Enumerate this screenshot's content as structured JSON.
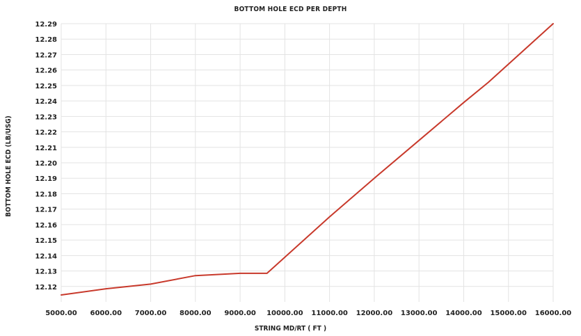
{
  "chart_data": {
    "type": "line",
    "title": "Bottom Hole ECD per Depth",
    "xlabel": "String MD/RT ( ft )",
    "ylabel": "Bottom Hole ECD (lb/usg)",
    "xlim": [
      5000,
      16000
    ],
    "ylim": [
      12.11,
      12.29
    ],
    "x_ticks": [
      "5000.00",
      "6000.00",
      "7000.00",
      "8000.00",
      "9000.00",
      "10000.00",
      "11000.00",
      "12000.00",
      "13000.00",
      "14000.00",
      "15000.00",
      "16000.00"
    ],
    "x_tick_values": [
      5000,
      6000,
      7000,
      8000,
      9000,
      10000,
      11000,
      12000,
      13000,
      14000,
      15000,
      16000
    ],
    "y_ticks": [
      "12.12",
      "12.13",
      "12.14",
      "12.15",
      "12.16",
      "12.17",
      "12.18",
      "12.19",
      "12.20",
      "12.21",
      "12.22",
      "12.23",
      "12.24",
      "12.25",
      "12.26",
      "12.27",
      "12.28",
      "12.29"
    ],
    "y_tick_values": [
      12.12,
      12.13,
      12.14,
      12.15,
      12.16,
      12.17,
      12.18,
      12.19,
      12.2,
      12.21,
      12.22,
      12.23,
      12.24,
      12.25,
      12.26,
      12.27,
      12.28,
      12.29
    ],
    "grid": true,
    "series": [
      {
        "color": "#c8392b",
        "x": [
          5000,
          6000,
          7000,
          8000,
          9000,
          9600,
          11000,
          12000,
          13000,
          14000,
          14550,
          16000
        ],
        "y": [
          12.1145,
          12.1185,
          12.1215,
          12.127,
          12.1285,
          12.1285,
          12.165,
          12.19,
          12.2145,
          12.239,
          12.252,
          12.29
        ]
      }
    ]
  }
}
